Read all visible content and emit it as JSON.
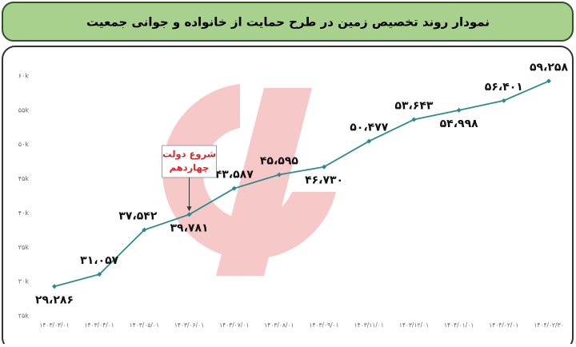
{
  "chart_data": {
    "type": "line",
    "title": "نمودار روند تخصیص زمین در طرح حمایت از خانواده و جوانی جمعیت",
    "categories": [
      "۱۴۰۳/۰۳/۰۱",
      "۱۴۰۳/۰۴/۰۱",
      "۱۴۰۳/۰۵/۰۱",
      "۱۴۰۳/۰۶/۰۱",
      "۱۴۰۳/۰۷/۰۱",
      "۱۴۰۳/۰۸/۰۱",
      "۱۴۰۳/۰۹/۰۱",
      "۱۴۰۳/۱۱/۰۱",
      "۱۴۰۳/۱۲/۰۱",
      "۱۴۰۴/۰۱/۰۱",
      "۱۴۰۴/۰۲/۰۱",
      "۱۴۰۴/۰۲/۳۰"
    ],
    "values": [
      29286,
      31057,
      37542,
      39781,
      43587,
      45595,
      46730,
      50477,
      53643,
      54998,
      56401,
      59258
    ],
    "value_labels": [
      "۲۹،۲۸۶",
      "۳۱،۰۵۷",
      "۳۷،۵۴۲",
      "۳۹،۷۸۱",
      "۴۳،۵۸۷",
      "۴۵،۵۹۵",
      "۴۶،۷۳۰",
      "۵۰،۴۷۷",
      "۵۳،۶۴۳",
      "۵۴،۹۹۸",
      "۵۶،۴۰۱",
      "۵۹،۲۵۸"
    ],
    "color": "#2e8b8b",
    "ylim": [
      25000,
      60000
    ],
    "yticks": [
      {
        "value": 25000,
        "label": "۲۵k"
      },
      {
        "value": 30000,
        "label": "۳۰k"
      },
      {
        "value": 35000,
        "label": "۳۵k"
      },
      {
        "value": 40000,
        "label": "۴۰k"
      },
      {
        "value": 45000,
        "label": "۴۵k"
      },
      {
        "value": 50000,
        "label": "۵۰k"
      },
      {
        "value": 55000,
        "label": "۵۵k"
      },
      {
        "value": 60000,
        "label": "۶۰k"
      }
    ],
    "grid": false,
    "annotation": {
      "lines": [
        "شروع دولت",
        "چهاردهم"
      ],
      "category_index": 3
    }
  }
}
